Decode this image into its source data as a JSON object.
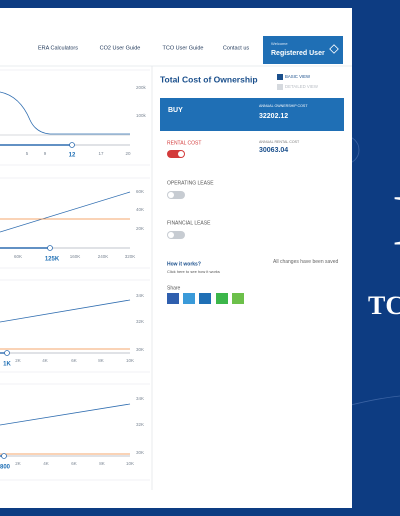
{
  "nav": {
    "links": [
      "ERA Calculators",
      "CO2 User Guide",
      "TCO User Guide",
      "Contact us"
    ],
    "welcome": "Welcome",
    "user": "Registered User"
  },
  "charts": [
    {
      "y_labels": [
        "200k",
        "100k"
      ],
      "x_labels": [
        "5",
        "9",
        "17",
        "20"
      ],
      "slider": "12"
    },
    {
      "y_labels": [
        "60K",
        "40K",
        "20K"
      ],
      "x_labels": [
        "60K",
        "160K",
        "240K",
        "320K"
      ],
      "slider": "125K"
    },
    {
      "y_labels": [
        "34K",
        "32K",
        "30K"
      ],
      "x_labels": [
        "2K",
        "4K",
        "6K",
        "8K",
        "10K"
      ],
      "slider": "1K"
    },
    {
      "y_labels": [
        "34K",
        "32K",
        "30K"
      ],
      "x_labels": [
        "2K",
        "4K",
        "6K",
        "8K",
        "10K"
      ],
      "slider": "800"
    }
  ],
  "sidebar": {
    "title": "Total Cost of Ownership",
    "basic_view": "BASIC VIEW",
    "detailed_view": "DETAILED VIEW",
    "buy": {
      "label": "BUY",
      "cost_label": "ANNUAL OWNERSHIP COST",
      "cost": "32202.12"
    },
    "rental": {
      "label": "RENTAL COST",
      "cost_label": "ANNUAL RENTAL COST",
      "cost": "30063.04"
    },
    "operating_lease": "OPERATING LEASE",
    "financial_lease": "FINANCIAL LEASE",
    "how_title": "How it works?",
    "how_text": "Click here to see how it works",
    "saved": "All changes have been saved",
    "share": "Share"
  },
  "banner": {
    "big": "I",
    "text": "TC"
  }
}
